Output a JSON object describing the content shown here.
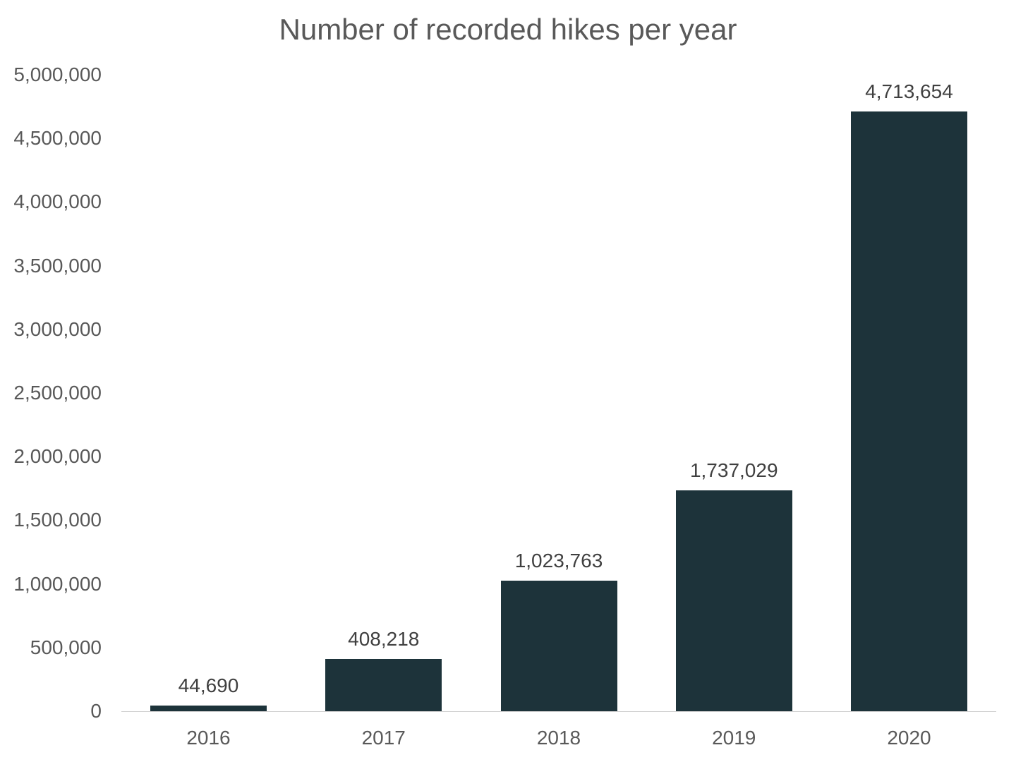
{
  "chart_data": {
    "type": "bar",
    "title": "Number of recorded hikes per year",
    "xlabel": "",
    "ylabel": "",
    "categories": [
      "2016",
      "2017",
      "2018",
      "2019",
      "2020"
    ],
    "values": [
      44690,
      408218,
      1023763,
      1737029,
      4713654
    ],
    "value_labels": [
      "44,690",
      "408,218",
      "1,023,763",
      "1,737,029",
      "4,713,654"
    ],
    "ylim": [
      0,
      5000000
    ],
    "yticks": [
      0,
      500000,
      1000000,
      1500000,
      2000000,
      2500000,
      3000000,
      3500000,
      4000000,
      4500000,
      5000000
    ],
    "ytick_labels": [
      "0",
      "500,000",
      "1,000,000",
      "1,500,000",
      "2,000,000",
      "2,500,000",
      "3,000,000",
      "3,500,000",
      "4,000,000",
      "4,500,000",
      "5,000,000"
    ],
    "grid": false,
    "legend": "none",
    "bar_color": "#1d333a"
  }
}
